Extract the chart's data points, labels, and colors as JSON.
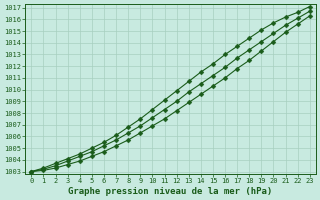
{
  "xlabel": "Graphe pression niveau de la mer (hPa)",
  "x": [
    0,
    1,
    2,
    3,
    4,
    5,
    6,
    7,
    8,
    9,
    10,
    11,
    12,
    13,
    14,
    15,
    16,
    17,
    18,
    19,
    20,
    21,
    22,
    23
  ],
  "y_upper": [
    1003.0,
    1003.3,
    1003.7,
    1004.1,
    1004.5,
    1005.0,
    1005.5,
    1006.1,
    1006.8,
    1007.5,
    1008.3,
    1009.1,
    1009.9,
    1010.7,
    1011.5,
    1012.2,
    1013.0,
    1013.7,
    1014.4,
    1015.1,
    1015.7,
    1016.2,
    1016.6,
    1017.1
  ],
  "y_mean": [
    1003.0,
    1003.2,
    1003.5,
    1003.9,
    1004.3,
    1004.7,
    1005.2,
    1005.7,
    1006.3,
    1006.9,
    1007.6,
    1008.3,
    1009.0,
    1009.8,
    1010.5,
    1011.2,
    1011.9,
    1012.7,
    1013.4,
    1014.1,
    1014.8,
    1015.5,
    1016.1,
    1016.7
  ],
  "y_lower": [
    1003.0,
    1003.1,
    1003.3,
    1003.6,
    1003.9,
    1004.3,
    1004.7,
    1005.2,
    1005.7,
    1006.3,
    1006.9,
    1007.5,
    1008.2,
    1008.9,
    1009.6,
    1010.3,
    1011.0,
    1011.8,
    1012.5,
    1013.3,
    1014.1,
    1014.9,
    1015.6,
    1016.3
  ],
  "ylim": [
    1003,
    1017
  ],
  "xlim": [
    0,
    23
  ],
  "yticks": [
    1003,
    1004,
    1005,
    1006,
    1007,
    1008,
    1009,
    1010,
    1011,
    1012,
    1013,
    1014,
    1015,
    1016,
    1017
  ],
  "xticks": [
    0,
    1,
    2,
    3,
    4,
    5,
    6,
    7,
    8,
    9,
    10,
    11,
    12,
    13,
    14,
    15,
    16,
    17,
    18,
    19,
    20,
    21,
    22,
    23
  ],
  "line_color": "#1a5c1a",
  "bg_color": "#c8eae0",
  "grid_color": "#a8cfc0",
  "marker": "D",
  "marker_size": 2.5,
  "line_width": 0.8,
  "xlabel_fontsize": 6.5,
  "tick_fontsize": 5,
  "tick_color": "#1a5c1a"
}
